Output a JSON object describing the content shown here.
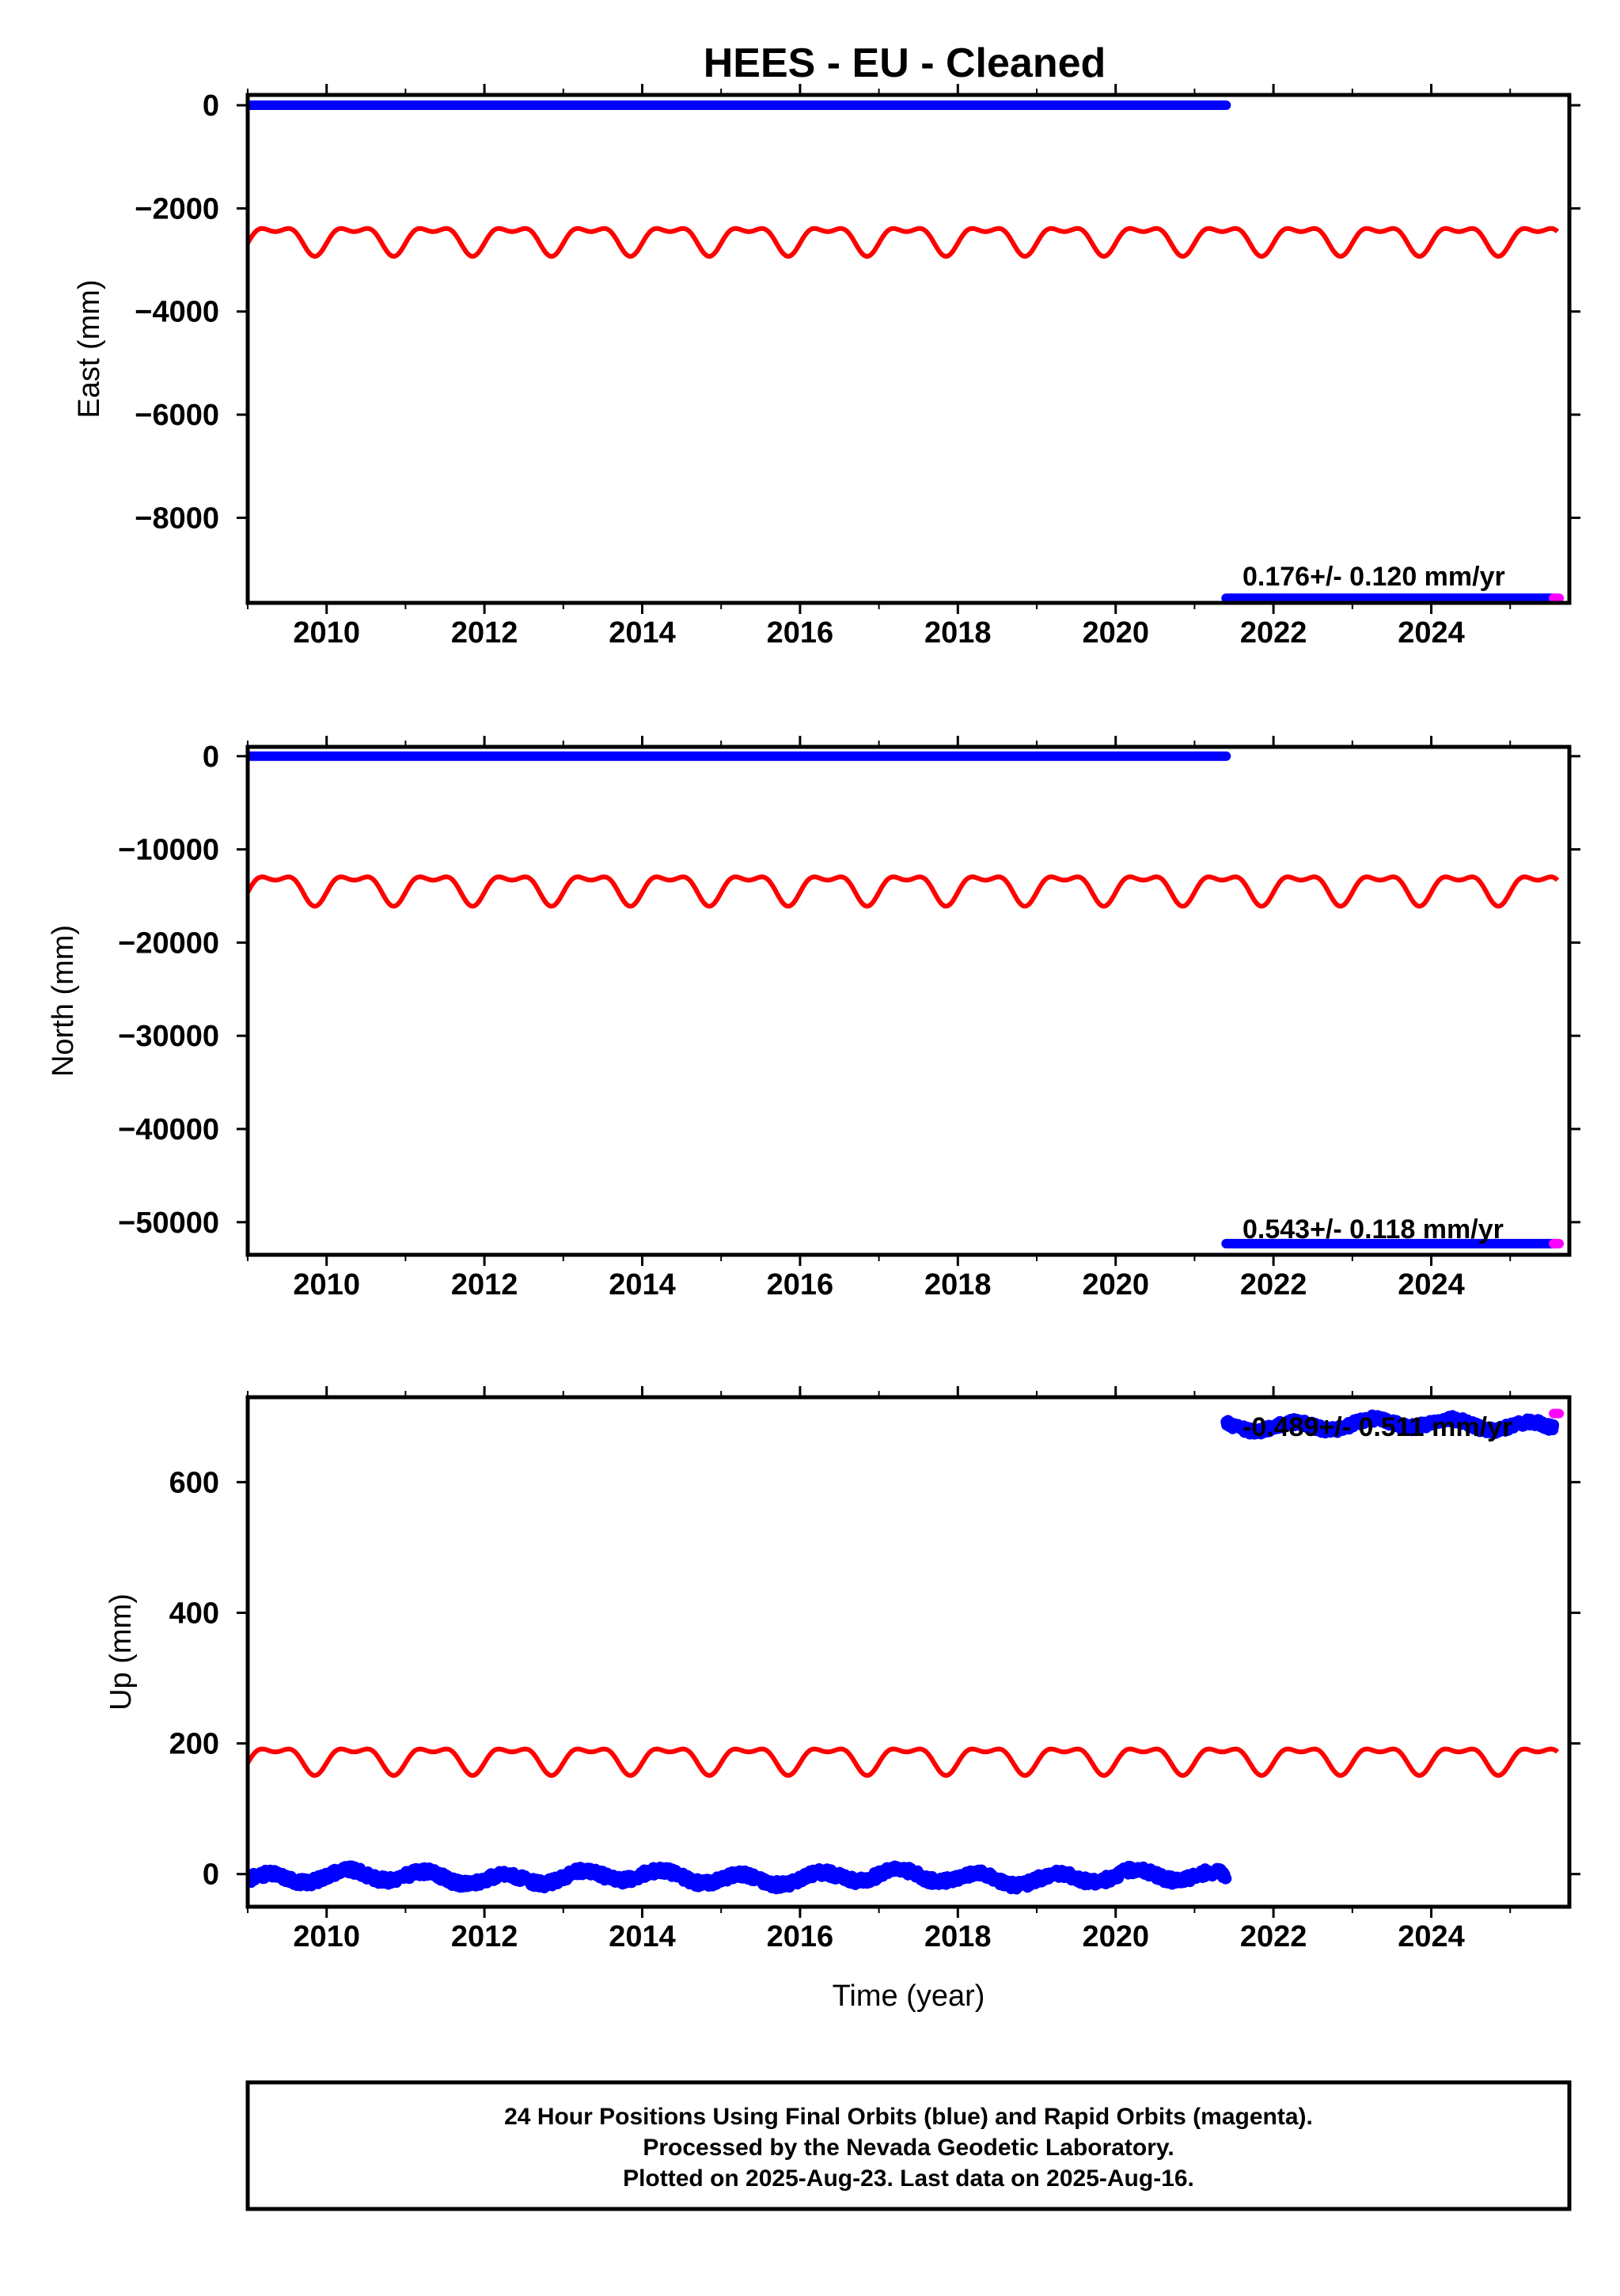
{
  "title": "HEES  - EU - Cleaned",
  "colors": {
    "final_orbits": "#0000ff",
    "rapid_orbits": "#ff00ff",
    "model": "#ff0000",
    "frame": "#000000"
  },
  "footer": {
    "line1": "24 Hour Positions Using Final Orbits (blue) and Rapid Orbits (magenta).",
    "line2": "Processed by the Nevada Geodetic Laboratory.",
    "line3": "Plotted on 2025-Aug-23. Last data on 2025-Aug-16."
  },
  "chart_data": [
    {
      "type": "scatter",
      "ylabel": "East (mm)",
      "xlabel": "",
      "xlim": [
        2009.0,
        2025.75
      ],
      "ylim": [
        -9650,
        200
      ],
      "xticks": [
        2010,
        2012,
        2014,
        2016,
        2018,
        2020,
        2022,
        2024
      ],
      "yticks": [
        0,
        -2000,
        -4000,
        -6000,
        -8000
      ],
      "yticklabels": [
        "0",
        "−2000",
        "−4000",
        "−6000",
        "−8000"
      ],
      "rate_text": "0.176+/- 0.120 mm/yr",
      "series": [
        {
          "color": "blue",
          "segments": [
            {
              "x": [
                2009.0,
                2021.4
              ],
              "y": 0
            },
            {
              "x": [
                2021.4,
                2025.55
              ],
              "y": -9560
            }
          ]
        },
        {
          "color": "magenta",
          "segments": [
            {
              "x": [
                2025.55,
                2025.62
              ],
              "y": -9560
            }
          ]
        },
        {
          "color": "red",
          "model": {
            "x": [
              2009.0,
              2025.6
            ],
            "center": -2570,
            "annual_amplitude": 240,
            "semiannual_amplitude": 120
          }
        }
      ]
    },
    {
      "type": "scatter",
      "ylabel": "North (mm)",
      "xlabel": "",
      "xlim": [
        2009.0,
        2025.75
      ],
      "ylim": [
        -53500,
        1000
      ],
      "xticks": [
        2010,
        2012,
        2014,
        2016,
        2018,
        2020,
        2022,
        2024
      ],
      "yticks": [
        0,
        -10000,
        -20000,
        -30000,
        -40000,
        -50000
      ],
      "yticklabels": [
        "0",
        "−10000",
        "−20000",
        "−30000",
        "−40000",
        "−50000"
      ],
      "rate_text": "0.543+/- 0.118 mm/yr",
      "series": [
        {
          "color": "blue",
          "segments": [
            {
              "x": [
                2009.0,
                2021.4
              ],
              "y": 0
            },
            {
              "x": [
                2021.4,
                2025.55
              ],
              "y": -52300
            }
          ]
        },
        {
          "color": "magenta",
          "segments": [
            {
              "x": [
                2025.55,
                2025.62
              ],
              "y": -52300
            }
          ]
        },
        {
          "color": "red",
          "model": {
            "x": [
              2009.0,
              2025.6
            ],
            "center": -14000,
            "annual_amplitude": 1400,
            "semiannual_amplitude": 700
          }
        }
      ]
    },
    {
      "type": "scatter",
      "ylabel": "Up (mm)",
      "xlabel": "Time (year)",
      "xlim": [
        2009.0,
        2025.75
      ],
      "ylim": [
        -50,
        730
      ],
      "xticks": [
        2010,
        2012,
        2014,
        2016,
        2018,
        2020,
        2022,
        2024
      ],
      "yticks": [
        0,
        200,
        400,
        600
      ],
      "yticklabels": [
        "0",
        "200",
        "400",
        "600"
      ],
      "rate_text": "-0.489+/- 0.511 mm/yr",
      "series": [
        {
          "color": "blue",
          "scatter": [
            {
              "x": [
                2009.0,
                2021.4
              ],
              "center": -5,
              "noise": 8
            },
            {
              "x": [
                2021.4,
                2025.55
              ],
              "center": 688,
              "noise": 7
            }
          ]
        },
        {
          "color": "magenta",
          "segments": [
            {
              "x": [
                2025.55,
                2025.62
              ],
              "y": 705
            }
          ]
        },
        {
          "color": "red",
          "model": {
            "x": [
              2009.0,
              2025.6
            ],
            "center": 178,
            "annual_amplitude": 18,
            "semiannual_amplitude": 9
          }
        }
      ]
    }
  ]
}
